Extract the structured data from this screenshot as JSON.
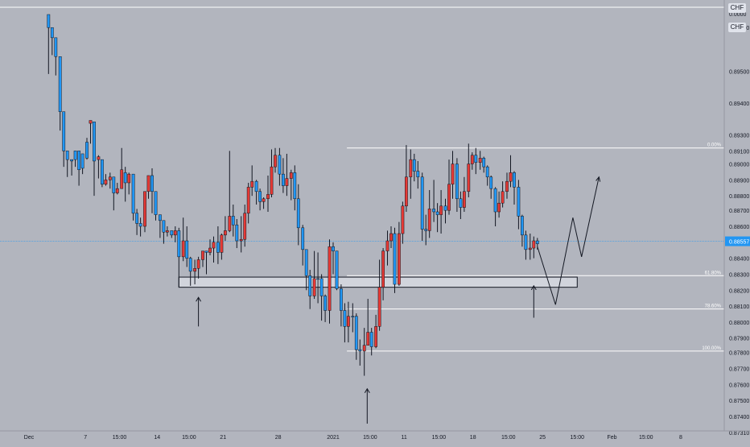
{
  "colors": {
    "background": "#b2b5be",
    "up": "#2196f3",
    "down": "#e53935",
    "wick": "#131722",
    "fib_line": "#ffffff",
    "last_price_bg": "#2196f3",
    "annotation": "#131722",
    "zone_fill": "#d1d4dc"
  },
  "header": {
    "symbol_label": "CHF",
    "symbol_label_2": "CHF"
  },
  "last_price": {
    "value": 0.88557,
    "label": "0.88557"
  },
  "chart_data": {
    "type": "candlestick",
    "y_axis": {
      "range": [
        0.8725,
        0.9022
      ],
      "ticks": [
        {
          "v": 0.8973,
          "label": "0.89500"
        },
        {
          "v": 0.8951,
          "label": "0.89400"
        },
        {
          "v": 0.8929,
          "label": "0.89300"
        },
        {
          "v": 0.8918,
          "label": "0.89100"
        },
        {
          "v": 0.8909,
          "label": "0.89000"
        },
        {
          "v": 0.8898,
          "label": "0.88900"
        },
        {
          "v": 0.8887,
          "label": "0.88800"
        },
        {
          "v": 0.8877,
          "label": "0.88700"
        },
        {
          "v": 0.8866,
          "label": "0.88600"
        },
        {
          "v": 0.8855,
          "label": "0.88500"
        },
        {
          "v": 0.8844,
          "label": "0.88400"
        },
        {
          "v": 0.8833,
          "label": "0.88300"
        },
        {
          "v": 0.8822,
          "label": "0.88200"
        },
        {
          "v": 0.8811,
          "label": "0.88100"
        },
        {
          "v": 0.88,
          "label": "0.88000"
        },
        {
          "v": 0.8789,
          "label": "0.87900"
        },
        {
          "v": 0.8779,
          "label": "0.87800"
        },
        {
          "v": 0.8768,
          "label": "0.87700"
        },
        {
          "v": 0.8757,
          "label": "0.87600"
        },
        {
          "v": 0.8746,
          "label": "0.87500"
        },
        {
          "v": 0.8735,
          "label": "0.87400"
        },
        {
          "v": 0.8724,
          "label": "0.87310"
        }
      ],
      "top_labels": [
        "0.0000",
        "0.89600"
      ]
    },
    "x_axis": {
      "range": [
        0,
        100
      ],
      "ticks": [
        {
          "t": 4,
          "label": "Dec"
        },
        {
          "t": 11.8,
          "label": "7"
        },
        {
          "t": 16.5,
          "label": "15:00"
        },
        {
          "t": 21.7,
          "label": "14"
        },
        {
          "t": 26.1,
          "label": "15:00"
        },
        {
          "t": 30.8,
          "label": "21"
        },
        {
          "t": 38.4,
          "label": "28"
        },
        {
          "t": 46,
          "label": "2021"
        },
        {
          "t": 51.1,
          "label": "15:00"
        },
        {
          "t": 55.8,
          "label": "11"
        },
        {
          "t": 60.6,
          "label": "15:00"
        },
        {
          "t": 65.3,
          "label": "18"
        },
        {
          "t": 70.2,
          "label": "15:00"
        },
        {
          "t": 74.9,
          "label": "25"
        },
        {
          "t": 79.7,
          "label": "15:00"
        },
        {
          "t": 84.5,
          "label": "Feb"
        },
        {
          "t": 89.2,
          "label": "15:00"
        },
        {
          "t": 94,
          "label": "8"
        }
      ]
    },
    "fib_levels": [
      {
        "label": "0.00%",
        "price": 0.892
      },
      {
        "label": "61.80%",
        "price": 0.8832
      },
      {
        "label": "78.60%",
        "price": 0.8809
      },
      {
        "label": "100.00%",
        "price": 0.878
      }
    ],
    "top_line_price": 0.9017,
    "support_zone": {
      "t_start": 24.7,
      "t_end": 79.7,
      "price_high": 0.8831,
      "price_low": 0.8824
    },
    "projection": [
      [
        74.2,
        0.8852
      ],
      [
        76.7,
        0.8812
      ],
      [
        79.1,
        0.8872
      ],
      [
        80.3,
        0.8845
      ],
      [
        82.7,
        0.89
      ]
    ],
    "arrows": [
      {
        "t": 27.4,
        "from": 0.8797,
        "to": 0.8817
      },
      {
        "t": 50.7,
        "from": 0.873,
        "to": 0.8754
      },
      {
        "t": 73.7,
        "from": 0.8803,
        "to": 0.8825
      }
    ],
    "candles": [
      [
        6.7,
        0.9003,
        0.9012,
        0.9005,
        0.8971
      ],
      [
        7.2,
        0.8996,
        0.9003,
        0.8996,
        0.8984
      ],
      [
        7.7,
        0.8983,
        0.8996,
        0.899,
        0.897
      ],
      [
        8.3,
        0.8945,
        0.8983,
        0.897,
        0.8932
      ],
      [
        8.8,
        0.8918,
        0.8945,
        0.8932,
        0.8907
      ],
      [
        9.3,
        0.8912,
        0.8918,
        0.8916,
        0.89
      ],
      [
        9.9,
        0.8911,
        0.8912,
        0.8912,
        0.8901
      ],
      [
        10.4,
        0.8912,
        0.8918,
        0.8918,
        0.8907
      ],
      [
        10.9,
        0.8905,
        0.8918,
        0.8916,
        0.8894
      ],
      [
        11.4,
        0.8906,
        0.8916,
        0.8911,
        0.8902
      ],
      [
        12,
        0.8913,
        0.8924,
        0.8927,
        0.8912
      ],
      [
        12.5,
        0.8939,
        0.8937,
        0.8939,
        0.8923
      ],
      [
        13,
        0.8911,
        0.8938,
        0.8926,
        0.8887
      ],
      [
        13.6,
        0.8914,
        0.8912,
        0.8915,
        0.8899
      ],
      [
        14.1,
        0.8895,
        0.8912,
        0.8911,
        0.8893
      ],
      [
        14.6,
        0.8898,
        0.8895,
        0.8902,
        0.8894
      ],
      [
        15.2,
        0.89,
        0.8898,
        0.8903,
        0.8892
      ],
      [
        15.7,
        0.8889,
        0.89,
        0.8898,
        0.8877
      ],
      [
        16.2,
        0.8892,
        0.8889,
        0.8896,
        0.8888
      ],
      [
        16.8,
        0.8905,
        0.8892,
        0.892,
        0.8892
      ],
      [
        17.3,
        0.8896,
        0.8903,
        0.8907,
        0.8883
      ],
      [
        17.8,
        0.8902,
        0.8896,
        0.8903,
        0.8888
      ],
      [
        18.4,
        0.8875,
        0.8902,
        0.8902,
        0.887
      ],
      [
        18.9,
        0.8868,
        0.8875,
        0.8878,
        0.886
      ],
      [
        19.4,
        0.8866,
        0.8868,
        0.8872,
        0.8859
      ],
      [
        20,
        0.889,
        0.8866,
        0.889,
        0.8862
      ],
      [
        20.5,
        0.8901,
        0.889,
        0.8901,
        0.8885
      ],
      [
        21,
        0.889,
        0.8901,
        0.8906,
        0.8875
      ],
      [
        21.5,
        0.8874,
        0.889,
        0.889,
        0.887
      ],
      [
        22.1,
        0.887,
        0.8874,
        0.8874,
        0.8858
      ],
      [
        22.6,
        0.8862,
        0.887,
        0.8869,
        0.8854
      ],
      [
        23.1,
        0.8863,
        0.8862,
        0.8866,
        0.8859
      ],
      [
        23.7,
        0.886,
        0.8863,
        0.8863,
        0.8858
      ],
      [
        24.2,
        0.8863,
        0.886,
        0.8866,
        0.8855
      ],
      [
        24.7,
        0.8845,
        0.8863,
        0.8865,
        0.8824
      ],
      [
        25.3,
        0.8856,
        0.8845,
        0.8872,
        0.8842
      ],
      [
        25.8,
        0.8844,
        0.8856,
        0.8866,
        0.8838
      ],
      [
        26.3,
        0.8835,
        0.8844,
        0.8845,
        0.8825
      ],
      [
        26.9,
        0.8837,
        0.8835,
        0.8843,
        0.8826
      ],
      [
        27.4,
        0.8843,
        0.8837,
        0.8845,
        0.883
      ],
      [
        28,
        0.8849,
        0.8843,
        0.8849,
        0.8838
      ],
      [
        28.5,
        0.8848,
        0.8849,
        0.8849,
        0.8833
      ],
      [
        29,
        0.8851,
        0.8848,
        0.8857,
        0.8846
      ],
      [
        29.5,
        0.8855,
        0.8851,
        0.8859,
        0.8841
      ],
      [
        30.1,
        0.8848,
        0.8855,
        0.8866,
        0.884
      ],
      [
        30.6,
        0.886,
        0.8848,
        0.8861,
        0.8843
      ],
      [
        31.1,
        0.8863,
        0.886,
        0.8873,
        0.8856
      ],
      [
        31.7,
        0.8873,
        0.8863,
        0.8918,
        0.8862
      ],
      [
        32.2,
        0.8867,
        0.8873,
        0.8881,
        0.8859
      ],
      [
        32.7,
        0.8856,
        0.8867,
        0.8871,
        0.8851
      ],
      [
        33.3,
        0.8857,
        0.8856,
        0.8873,
        0.8848
      ],
      [
        33.8,
        0.8875,
        0.8857,
        0.8881,
        0.8852
      ],
      [
        34.3,
        0.8893,
        0.8875,
        0.8896,
        0.8868
      ],
      [
        34.8,
        0.8897,
        0.8893,
        0.8908,
        0.8887
      ],
      [
        35.4,
        0.889,
        0.8897,
        0.8898,
        0.8881
      ],
      [
        35.9,
        0.8883,
        0.889,
        0.8892,
        0.8877
      ],
      [
        36.4,
        0.8885,
        0.8883,
        0.8886,
        0.8878
      ],
      [
        37,
        0.8888,
        0.8885,
        0.8901,
        0.8876
      ],
      [
        37.5,
        0.8907,
        0.8888,
        0.8919,
        0.8886
      ],
      [
        38,
        0.8915,
        0.8907,
        0.892,
        0.8903
      ],
      [
        38.6,
        0.8902,
        0.8915,
        0.892,
        0.8894
      ],
      [
        39.1,
        0.8894,
        0.8902,
        0.8913,
        0.8889
      ],
      [
        39.6,
        0.8899,
        0.8894,
        0.8916,
        0.8887
      ],
      [
        40.2,
        0.8903,
        0.8899,
        0.8905,
        0.8884
      ],
      [
        40.7,
        0.8885,
        0.8903,
        0.8908,
        0.8877
      ],
      [
        41.2,
        0.8865,
        0.8885,
        0.8895,
        0.8853
      ],
      [
        41.8,
        0.885,
        0.8865,
        0.8867,
        0.8839
      ],
      [
        42.3,
        0.8832,
        0.885,
        0.885,
        0.8822
      ],
      [
        42.8,
        0.8818,
        0.8832,
        0.8836,
        0.8809
      ],
      [
        43.4,
        0.883,
        0.8818,
        0.8849,
        0.8816
      ],
      [
        43.9,
        0.883,
        0.883,
        0.8848,
        0.8813
      ],
      [
        44.4,
        0.8818,
        0.883,
        0.8833,
        0.8801
      ],
      [
        44.9,
        0.8808,
        0.8818,
        0.8819,
        0.88
      ],
      [
        45.5,
        0.8852,
        0.8808,
        0.8857,
        0.8799
      ],
      [
        46,
        0.8849,
        0.8852,
        0.8855,
        0.8833
      ],
      [
        46.5,
        0.8823,
        0.8849,
        0.8849,
        0.8822
      ],
      [
        47.1,
        0.8808,
        0.8823,
        0.8826,
        0.8797
      ],
      [
        47.6,
        0.8797,
        0.8808,
        0.8813,
        0.8786
      ],
      [
        48.1,
        0.8804,
        0.8797,
        0.8814,
        0.8786
      ],
      [
        48.7,
        0.8804,
        0.8804,
        0.8813,
        0.8793
      ],
      [
        49.2,
        0.8781,
        0.8804,
        0.8806,
        0.8774
      ],
      [
        49.7,
        0.878,
        0.8781,
        0.8788,
        0.877
      ],
      [
        50.3,
        0.8784,
        0.878,
        0.8796,
        0.8763
      ],
      [
        50.8,
        0.8793,
        0.8784,
        0.8816,
        0.8786
      ],
      [
        51.3,
        0.8783,
        0.8793,
        0.8796,
        0.8777
      ],
      [
        51.9,
        0.8797,
        0.8783,
        0.8805,
        0.8782
      ],
      [
        52.4,
        0.8824,
        0.8797,
        0.8843,
        0.8794
      ],
      [
        52.9,
        0.8849,
        0.8824,
        0.8851,
        0.8815
      ],
      [
        53.5,
        0.8856,
        0.8849,
        0.8863,
        0.8839
      ],
      [
        54,
        0.8861,
        0.8856,
        0.8866,
        0.8851
      ],
      [
        54.5,
        0.8826,
        0.8861,
        0.8865,
        0.882
      ],
      [
        55.1,
        0.8861,
        0.8826,
        0.8869,
        0.8825
      ],
      [
        55.6,
        0.888,
        0.8861,
        0.8883,
        0.8854
      ],
      [
        56.1,
        0.89,
        0.888,
        0.8922,
        0.8876
      ],
      [
        56.7,
        0.8912,
        0.89,
        0.8919,
        0.8885
      ],
      [
        57.2,
        0.8904,
        0.8912,
        0.8916,
        0.8897
      ],
      [
        57.7,
        0.89,
        0.8904,
        0.8911,
        0.8892
      ],
      [
        58.3,
        0.8864,
        0.89,
        0.8903,
        0.8856
      ],
      [
        58.8,
        0.8863,
        0.8864,
        0.8874,
        0.8853
      ],
      [
        59.3,
        0.8878,
        0.8863,
        0.8891,
        0.8858
      ],
      [
        59.9,
        0.8876,
        0.8878,
        0.8898,
        0.8869
      ],
      [
        60.4,
        0.8874,
        0.8876,
        0.8882,
        0.8862
      ],
      [
        60.9,
        0.888,
        0.8874,
        0.8891,
        0.8861
      ],
      [
        61.5,
        0.8877,
        0.888,
        0.8885,
        0.8868
      ],
      [
        62,
        0.8895,
        0.8877,
        0.8912,
        0.8874
      ],
      [
        62.5,
        0.8909,
        0.8895,
        0.8918,
        0.8885
      ],
      [
        63.1,
        0.8885,
        0.8909,
        0.8913,
        0.8876
      ],
      [
        63.6,
        0.8879,
        0.8885,
        0.889,
        0.8871
      ],
      [
        64.1,
        0.889,
        0.8879,
        0.89,
        0.8876
      ],
      [
        64.7,
        0.8909,
        0.889,
        0.8923,
        0.8886
      ],
      [
        65.2,
        0.8915,
        0.8909,
        0.8917,
        0.8905
      ],
      [
        65.7,
        0.891,
        0.8915,
        0.892,
        0.8902
      ],
      [
        66.3,
        0.8913,
        0.891,
        0.8918,
        0.8905
      ],
      [
        66.8,
        0.8907,
        0.8913,
        0.8914,
        0.8903
      ],
      [
        67.3,
        0.89,
        0.8907,
        0.8908,
        0.8894
      ],
      [
        67.8,
        0.8892,
        0.89,
        0.8901,
        0.8885
      ],
      [
        68.4,
        0.8876,
        0.8892,
        0.8893,
        0.8866
      ],
      [
        68.9,
        0.8882,
        0.8876,
        0.889,
        0.8872
      ],
      [
        69.4,
        0.889,
        0.8882,
        0.8897,
        0.8879
      ],
      [
        70,
        0.8897,
        0.889,
        0.8903,
        0.8885
      ],
      [
        70.5,
        0.8903,
        0.8897,
        0.8915,
        0.8893
      ],
      [
        71,
        0.8893,
        0.8903,
        0.8904,
        0.8881
      ],
      [
        71.6,
        0.8873,
        0.8893,
        0.8898,
        0.8864
      ],
      [
        72.1,
        0.886,
        0.8873,
        0.8874,
        0.8852
      ],
      [
        72.6,
        0.885,
        0.886,
        0.8863,
        0.8843
      ],
      [
        73.2,
        0.8851,
        0.885,
        0.8861,
        0.8843
      ],
      [
        73.7,
        0.8856,
        0.8851,
        0.8859,
        0.8844
      ],
      [
        74.2,
        0.8854,
        0.8856,
        0.8858,
        0.885
      ]
    ]
  }
}
